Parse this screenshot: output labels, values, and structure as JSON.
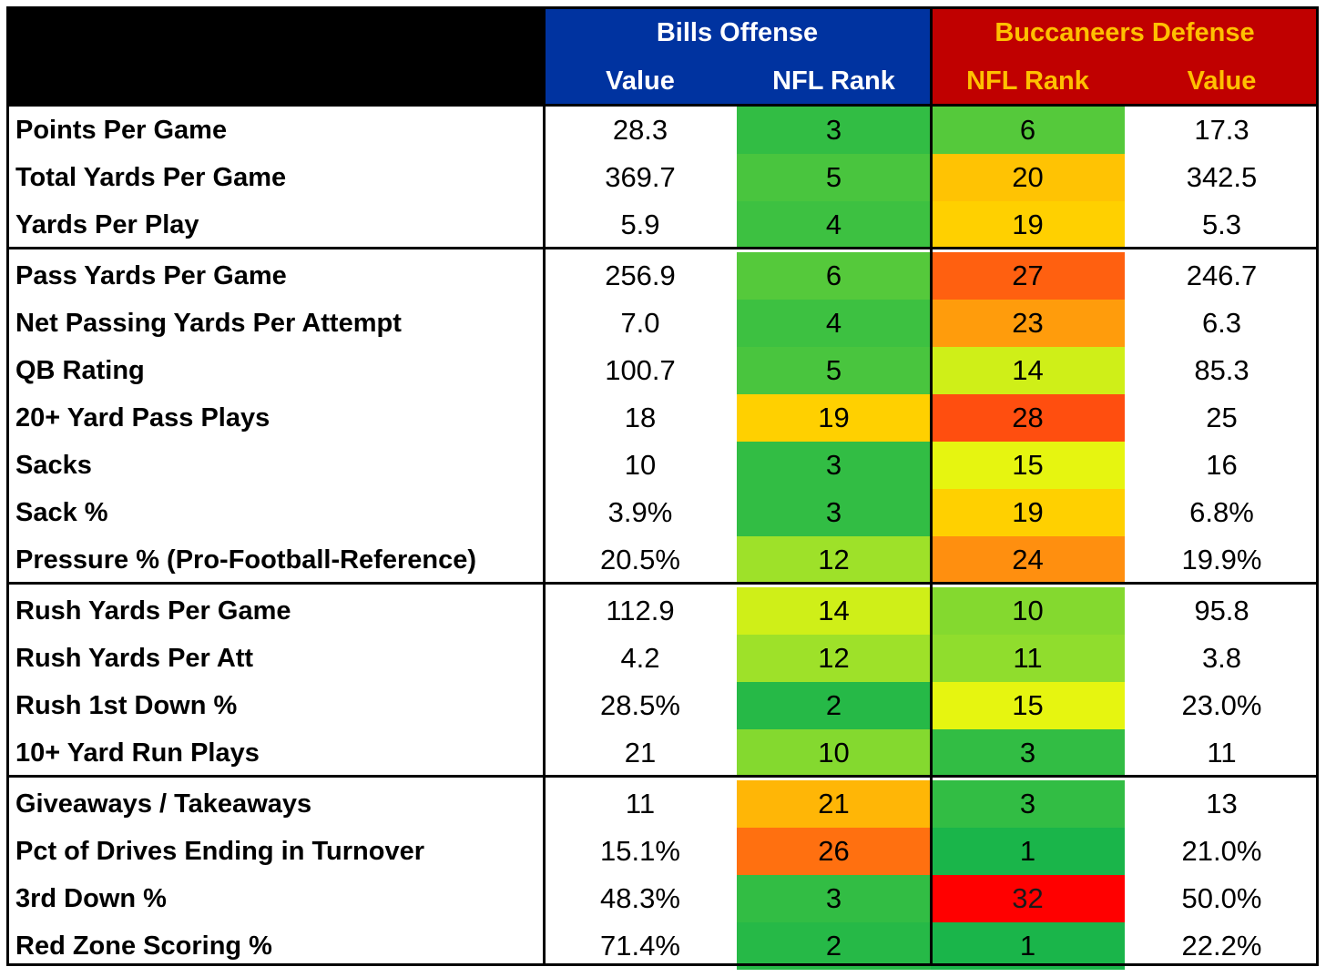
{
  "header": {
    "bills_title": "Bills Offense",
    "bucs_title": "Buccaneers Defense",
    "value_label": "Value",
    "rank_label": "NFL Rank",
    "bucs_rank_label": "NFL Rank",
    "bucs_value_label": "Value",
    "colors": {
      "bills_bg": "#0033A0",
      "bills_text": "#FFFFFF",
      "bucs_bg": "#C00000",
      "bucs_text": "#FFC000",
      "corner_bg": "#000000"
    }
  },
  "sections": [
    {
      "rows": [
        {
          "metric": "Points Per Game",
          "bills_value": "28.3",
          "bills_rank": "3",
          "bucs_rank": "6",
          "bucs_value": "17.3"
        },
        {
          "metric": "Total Yards Per Game",
          "bills_value": "369.7",
          "bills_rank": "5",
          "bucs_rank": "20",
          "bucs_value": "342.5"
        },
        {
          "metric": "Yards Per Play",
          "bills_value": "5.9",
          "bills_rank": "4",
          "bucs_rank": "19",
          "bucs_value": "5.3"
        }
      ]
    },
    {
      "rows": [
        {
          "metric": "Pass Yards Per Game",
          "bills_value": "256.9",
          "bills_rank": "6",
          "bucs_rank": "27",
          "bucs_value": "246.7"
        },
        {
          "metric": "Net Passing Yards Per Attempt",
          "bills_value": "7.0",
          "bills_rank": "4",
          "bucs_rank": "23",
          "bucs_value": "6.3"
        },
        {
          "metric": "QB Rating",
          "bills_value": "100.7",
          "bills_rank": "5",
          "bucs_rank": "14",
          "bucs_value": "85.3"
        },
        {
          "metric": "20+ Yard Pass Plays",
          "bills_value": "18",
          "bills_rank": "19",
          "bucs_rank": "28",
          "bucs_value": "25"
        },
        {
          "metric": "Sacks",
          "bills_value": "10",
          "bills_rank": "3",
          "bucs_rank": "15",
          "bucs_value": "16"
        },
        {
          "metric": "Sack %",
          "bills_value": "3.9%",
          "bills_rank": "3",
          "bucs_rank": "19",
          "bucs_value": "6.8%"
        },
        {
          "metric": "Pressure % (Pro-Football-Reference)",
          "bills_value": "20.5%",
          "bills_rank": "12",
          "bucs_rank": "24",
          "bucs_value": "19.9%"
        }
      ]
    },
    {
      "rows": [
        {
          "metric": "Rush Yards Per Game",
          "bills_value": "112.9",
          "bills_rank": "14",
          "bucs_rank": "10",
          "bucs_value": "95.8"
        },
        {
          "metric": "Rush Yards Per Att",
          "bills_value": "4.2",
          "bills_rank": "12",
          "bucs_rank": "11",
          "bucs_value": "3.8"
        },
        {
          "metric": "Rush 1st Down %",
          "bills_value": "28.5%",
          "bills_rank": "2",
          "bucs_rank": "15",
          "bucs_value": "23.0%"
        },
        {
          "metric": "10+ Yard Run Plays",
          "bills_value": "21",
          "bills_rank": "10",
          "bucs_rank": "3",
          "bucs_value": "11"
        }
      ]
    },
    {
      "rows": [
        {
          "metric": "Giveaways / Takeaways",
          "bills_value": "11",
          "bills_rank": "21",
          "bucs_rank": "3",
          "bucs_value": "13"
        },
        {
          "metric": "Pct of Drives Ending in Turnover",
          "bills_value": "15.1%",
          "bills_rank": "26",
          "bucs_rank": "1",
          "bucs_value": "21.0%"
        },
        {
          "metric": "3rd Down %",
          "bills_value": "48.3%",
          "bills_rank": "3",
          "bucs_rank": "32",
          "bucs_value": "50.0%"
        },
        {
          "metric": "Red Zone Scoring %",
          "bills_value": "71.4%",
          "bills_rank": "2",
          "bucs_rank": "1",
          "bucs_value": "22.2%"
        }
      ]
    }
  ]
}
